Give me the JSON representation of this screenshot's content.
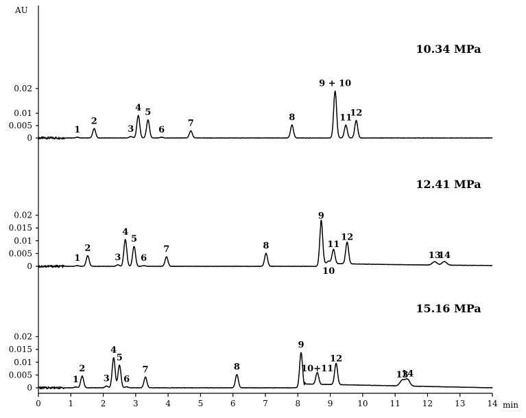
{
  "chart_data": {
    "type": "line",
    "y_unit": "AU",
    "x_unit": "min",
    "xlim": [
      0,
      14
    ],
    "x_ticks": [
      0,
      1,
      2,
      3,
      4,
      5,
      6,
      7,
      8,
      9,
      10,
      11,
      12,
      13,
      14
    ],
    "panels": [
      {
        "title": "10.34 MPa",
        "ylim": [
          0,
          0.025
        ],
        "y_ticks": [
          0,
          0.005,
          0.01,
          0.02
        ],
        "y_tick_labels": [
          "0",
          "0.005",
          "0.01",
          "0.02"
        ],
        "peaks": [
          {
            "label": "1",
            "x": 1.2,
            "y": 0.0003
          },
          {
            "label": "2",
            "x": 1.72,
            "y": 0.0038
          },
          {
            "label": "3",
            "x": 2.85,
            "y": 0.0006
          },
          {
            "label": "4",
            "x": 3.08,
            "y": 0.0091
          },
          {
            "label": "5",
            "x": 3.38,
            "y": 0.0073
          },
          {
            "label": "6",
            "x": 3.8,
            "y": 0.0003
          },
          {
            "label": "7",
            "x": 4.7,
            "y": 0.0029
          },
          {
            "label": "8",
            "x": 7.82,
            "y": 0.0053
          },
          {
            "label": "9 + 10",
            "x": 9.15,
            "y": 0.019
          },
          {
            "label": "11",
            "x": 9.48,
            "y": 0.0052
          },
          {
            "label": "12",
            "x": 9.8,
            "y": 0.0071
          }
        ]
      },
      {
        "title": "12.41 MPa",
        "ylim": [
          0,
          0.0225
        ],
        "y_ticks": [
          0,
          0.005,
          0.01,
          0.015,
          0.02
        ],
        "y_tick_labels": [
          "0",
          "0.005",
          "0.01",
          "0.015",
          "0.02"
        ],
        "peaks": [
          {
            "label": "1",
            "x": 1.2,
            "y": 0.0003
          },
          {
            "label": "2",
            "x": 1.52,
            "y": 0.0042
          },
          {
            "label": "3",
            "x": 2.45,
            "y": 0.0006
          },
          {
            "label": "4",
            "x": 2.68,
            "y": 0.0105
          },
          {
            "label": "5",
            "x": 2.95,
            "y": 0.0078
          },
          {
            "label": "6",
            "x": 3.25,
            "y": 0.0003
          },
          {
            "label": "7",
            "x": 3.95,
            "y": 0.0037
          },
          {
            "label": "8",
            "x": 7.02,
            "y": 0.0051
          },
          {
            "label": "9",
            "x": 8.72,
            "y": 0.0168
          },
          {
            "label": "10",
            "x": 8.95,
            "y": 0.0009
          },
          {
            "label": "11",
            "x": 9.1,
            "y": 0.0056
          },
          {
            "label": "12",
            "x": 9.52,
            "y": 0.0085
          },
          {
            "label": "13",
            "x": 12.22,
            "y": 0.0013
          },
          {
            "label": "14",
            "x": 12.52,
            "y": 0.0014
          }
        ]
      },
      {
        "title": "15.16 MPa",
        "ylim": [
          0,
          0.0225
        ],
        "y_ticks": [
          0,
          0.005,
          0.01,
          0.015,
          0.02
        ],
        "y_tick_labels": [
          "0",
          "0.005",
          "0.01",
          "0.015",
          "0.02"
        ],
        "peaks": [
          {
            "label": "1",
            "x": 1.15,
            "y": 0.0003
          },
          {
            "label": "2",
            "x": 1.35,
            "y": 0.0046
          },
          {
            "label": "3",
            "x": 2.1,
            "y": 0.0007
          },
          {
            "label": "4",
            "x": 2.32,
            "y": 0.0118
          },
          {
            "label": "5",
            "x": 2.5,
            "y": 0.0089
          },
          {
            "label": "6",
            "x": 2.72,
            "y": 0.0004
          },
          {
            "label": "7",
            "x": 3.3,
            "y": 0.0042
          },
          {
            "label": "8",
            "x": 6.12,
            "y": 0.0052
          },
          {
            "label": "9",
            "x": 8.1,
            "y": 0.0138
          },
          {
            "label": "10+11",
            "x": 8.6,
            "y": 0.0046
          },
          {
            "label": "12",
            "x": 9.18,
            "y": 0.0084
          },
          {
            "label": "13",
            "x": 11.22,
            "y": 0.0022
          },
          {
            "label": "14",
            "x": 11.38,
            "y": 0.0026
          }
        ]
      }
    ]
  }
}
